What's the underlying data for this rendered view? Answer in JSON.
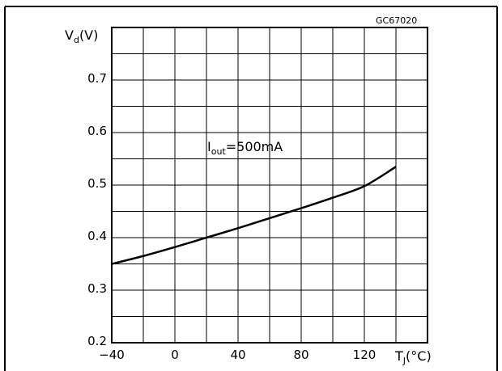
{
  "figure_id": "GC67020",
  "chart_data": {
    "type": "line",
    "ylabel": "V",
    "ylabel_sub": "d",
    "ylabel_unit": "(V)",
    "xlabel": "T",
    "xlabel_sub": "J",
    "xlabel_unit": "(°C)",
    "xlim": [
      -40,
      160
    ],
    "ylim": [
      0.2,
      0.8
    ],
    "x_ticks": [
      "-40",
      "0",
      "40",
      "80",
      "120"
    ],
    "x_tick_values": [
      -40,
      0,
      40,
      80,
      120
    ],
    "y_ticks": [
      "0.2",
      "0.3",
      "0.4",
      "0.5",
      "0.6",
      "0.7"
    ],
    "y_tick_values": [
      0.2,
      0.3,
      0.4,
      0.5,
      0.6,
      0.7
    ],
    "grid": true,
    "annotation": {
      "text": "I",
      "sub": "out",
      "rest": "=500mA"
    },
    "series": [
      {
        "x": [
          -40,
          -20,
          0,
          20,
          40,
          60,
          80,
          100,
          120,
          140
        ],
        "y": [
          0.35,
          0.365,
          0.382,
          0.4,
          0.418,
          0.437,
          0.456,
          0.476,
          0.498,
          0.535
        ]
      }
    ]
  }
}
